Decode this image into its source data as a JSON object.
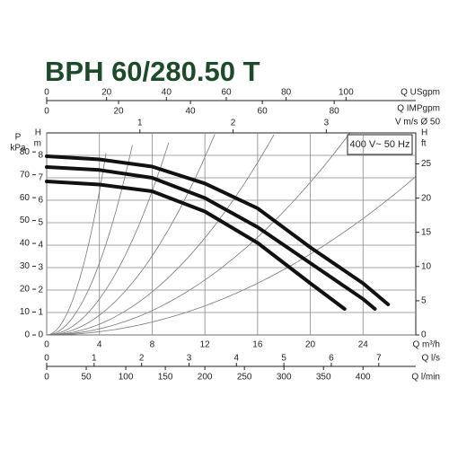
{
  "chart_data": {
    "type": "line",
    "title": "BPH 60/280.50 T",
    "annotation": "400 V~ 50 Hz",
    "xlabel": "Q m³/h",
    "xlim": [
      0,
      28
    ],
    "xticks": [
      0,
      4,
      8,
      12,
      16,
      20,
      24
    ],
    "ylabel": [
      "H",
      "m"
    ],
    "ylim": [
      0,
      9
    ],
    "yticks": [
      0,
      1,
      2,
      3,
      4,
      5,
      6,
      7,
      8
    ],
    "y_kpa_label": [
      "P",
      "kPa"
    ],
    "y_kpa_lim": [
      0,
      88.3
    ],
    "y_kpa_ticks": [
      0,
      10,
      20,
      30,
      40,
      50,
      60,
      70,
      80
    ],
    "y2label": [
      "H",
      "ft"
    ],
    "y2lim": [
      0,
      29.53
    ],
    "y2ticks": [
      0,
      5,
      10,
      15,
      20,
      25
    ],
    "grid": true,
    "top_axes": [
      {
        "label": "Q USgpm",
        "xlim": [
          0,
          123.3
        ],
        "xticks": [
          0,
          20,
          40,
          60,
          80,
          100
        ]
      },
      {
        "label": "Q IMPgpm",
        "xlim": [
          0,
          102.7
        ],
        "xticks": [
          0,
          20,
          40,
          60,
          80
        ]
      },
      {
        "label": "V m/s Ø 50",
        "xlim": [
          0,
          3.96
        ],
        "xticks": [
          1,
          2,
          3
        ]
      }
    ],
    "bottom_axes": [
      {
        "label": "Q l/s",
        "xlim": [
          0,
          7.78
        ],
        "xticks": [
          0,
          1,
          2,
          3,
          4,
          5,
          6,
          7
        ]
      },
      {
        "label": "Q l/min",
        "xlim": [
          0,
          466.7
        ],
        "xticks": [
          0,
          50,
          100,
          150,
          200,
          250,
          300,
          350,
          400
        ]
      }
    ],
    "series": [
      {
        "color": "#111111",
        "x": [
          0,
          4,
          8,
          12,
          16,
          20,
          24,
          25.9
        ],
        "values": [
          7.96,
          7.82,
          7.5,
          6.75,
          5.64,
          3.9,
          2.3,
          1.36
        ]
      },
      {
        "color": "#111111",
        "x": [
          0,
          4,
          8,
          12,
          16,
          20,
          24,
          24.9
        ],
        "values": [
          7.48,
          7.35,
          7.0,
          6.1,
          4.8,
          3.2,
          1.6,
          1.16
        ]
      },
      {
        "color": "#111111",
        "x": [
          0,
          4,
          8,
          12,
          16,
          20,
          22.6
        ],
        "values": [
          6.84,
          6.7,
          6.4,
          5.5,
          4.1,
          2.3,
          1.16
        ]
      }
    ]
  }
}
